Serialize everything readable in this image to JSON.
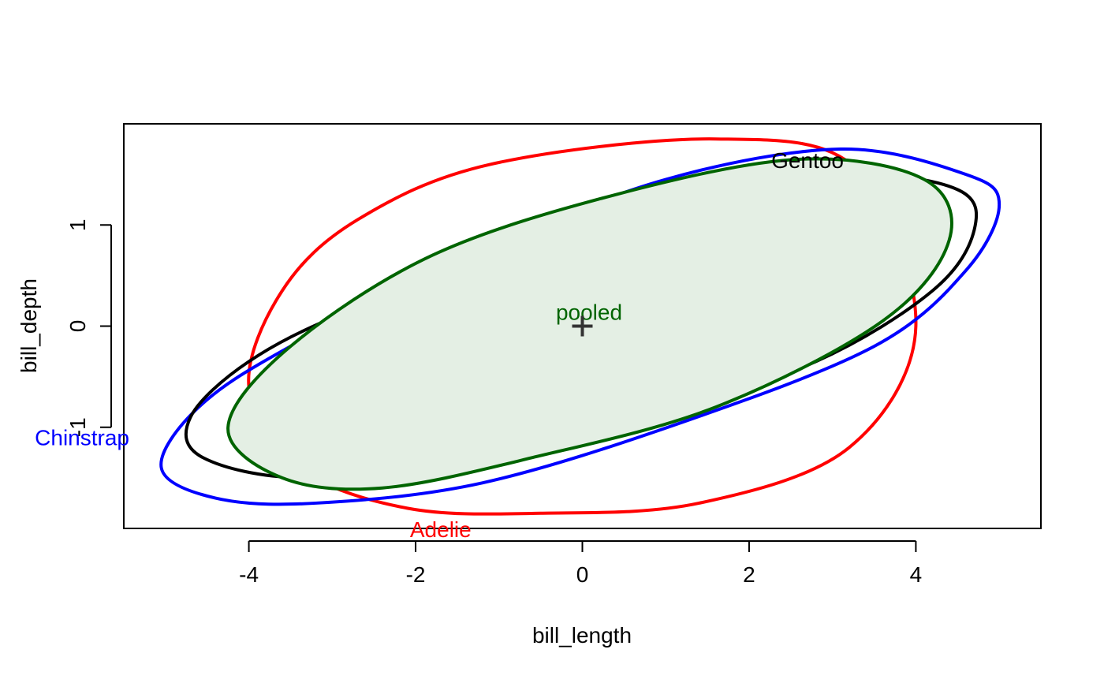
{
  "chart_data": {
    "type": "ellipse",
    "title": "",
    "xlabel": "bill_length",
    "ylabel": "bill_depth",
    "xlim": [
      -5.5,
      5.5
    ],
    "ylim": [
      -2.0,
      2.0
    ],
    "x_ticks": [
      -4,
      -2,
      0,
      2,
      4
    ],
    "x_tick_labels": [
      "-4",
      "-2",
      "0",
      "2",
      "4"
    ],
    "y_ticks": [
      -1,
      0,
      1
    ],
    "y_tick_labels": [
      "-1",
      "0",
      "1"
    ],
    "grid": false,
    "legend": "none",
    "center_marker": {
      "x": 0,
      "y": 0,
      "symbol": "+"
    },
    "ellipses": [
      {
        "name": "Adelie",
        "label": "Adelie",
        "color": "#ff0000",
        "fill": false,
        "center": [
          0,
          0
        ],
        "vertices": [
          [
            4.0,
            0.0
          ],
          [
            3.2,
            -1.2
          ],
          [
            1.4,
            -1.75
          ],
          [
            -0.5,
            -1.85
          ],
          [
            -2.1,
            -1.8
          ],
          [
            -3.4,
            -1.4
          ],
          [
            -4.0,
            -0.6
          ],
          [
            -3.6,
            0.35
          ],
          [
            -2.7,
            1.05
          ],
          [
            -1.1,
            1.6
          ],
          [
            1.6,
            1.85
          ],
          [
            3.3,
            1.55
          ]
        ],
        "label_position": [
          -1.7,
          -2.03
        ]
      },
      {
        "name": "Chinstrap",
        "label": "Chinstrap",
        "color": "#0000ff",
        "fill": false,
        "center": [
          0,
          0
        ],
        "vertices": [
          [
            5.0,
            1.2
          ],
          [
            4.6,
            0.55
          ],
          [
            3.5,
            -0.2
          ],
          [
            1.2,
            -0.95
          ],
          [
            -1.2,
            -1.55
          ],
          [
            -3.2,
            -1.75
          ],
          [
            -4.4,
            -1.7
          ],
          [
            -5.05,
            -1.4
          ],
          [
            -4.6,
            -0.8
          ],
          [
            -3.5,
            -0.2
          ],
          [
            -1.2,
            0.75
          ],
          [
            1.0,
            1.45
          ],
          [
            3.1,
            1.75
          ],
          [
            4.6,
            1.5
          ]
        ],
        "label_position": [
          -6.0,
          -1.12
        ]
      },
      {
        "name": "Gentoo",
        "label": "Gentoo",
        "color": "#000000",
        "fill": false,
        "center": [
          0,
          0
        ],
        "vertices": [
          [
            4.7,
            0.95
          ],
          [
            4.2,
            0.35
          ],
          [
            2.8,
            -0.35
          ],
          [
            0.8,
            -0.9
          ],
          [
            -1.2,
            -1.3
          ],
          [
            -3.3,
            -1.5
          ],
          [
            -4.55,
            -1.3
          ],
          [
            -4.7,
            -0.9
          ],
          [
            -4.0,
            -0.35
          ],
          [
            -2.8,
            0.15
          ],
          [
            -0.6,
            0.8
          ],
          [
            1.4,
            1.25
          ],
          [
            3.2,
            1.5
          ],
          [
            4.5,
            1.35
          ]
        ],
        "label_position": [
          2.7,
          1.62
        ]
      },
      {
        "name": "pooled",
        "label": "pooled",
        "color": "#006400",
        "fill": true,
        "fill_color": "#e4efe4",
        "center": [
          0,
          0
        ],
        "vertices": [
          [
            4.4,
            0.85
          ],
          [
            3.6,
            0.05
          ],
          [
            1.6,
            -0.8
          ],
          [
            -0.6,
            -1.3
          ],
          [
            -2.4,
            -1.6
          ],
          [
            -3.6,
            -1.5
          ],
          [
            -4.25,
            -1.0
          ],
          [
            -3.5,
            -0.2
          ],
          [
            -1.8,
            0.7
          ],
          [
            0.4,
            1.3
          ],
          [
            2.6,
            1.65
          ],
          [
            4.1,
            1.45
          ]
        ],
        "label_position": [
          0.08,
          0.12
        ]
      }
    ]
  }
}
